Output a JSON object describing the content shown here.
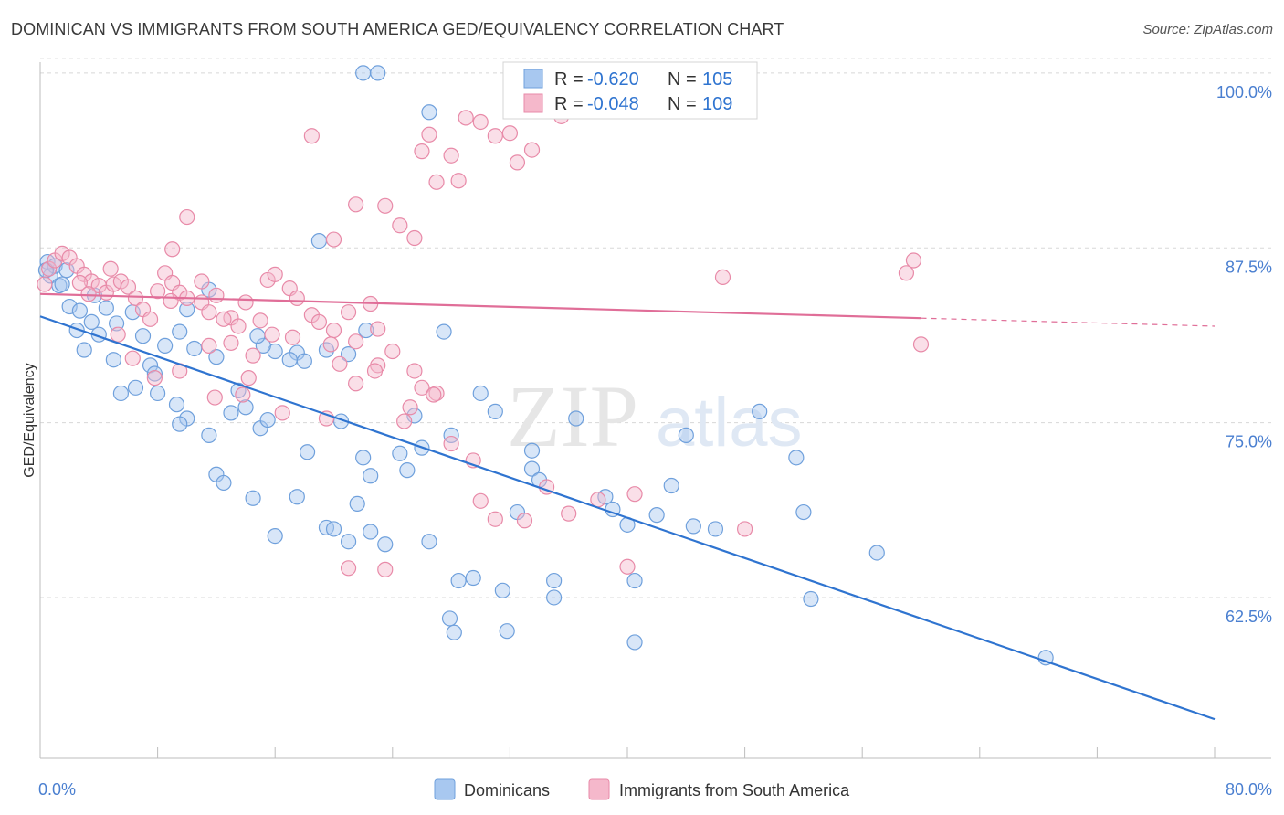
{
  "title": "DOMINICAN VS IMMIGRANTS FROM SOUTH AMERICA GED/EQUIVALENCY CORRELATION CHART",
  "source": "Source: ZipAtlas.com",
  "watermark": {
    "zip": "ZIP",
    "atlas": "atlas"
  },
  "colors": {
    "blue_fill": "#a8c8f0",
    "blue_stroke": "#6fa0dc",
    "blue_line": "#2f74d0",
    "pink_fill": "#f5b8cb",
    "pink_stroke": "#e88aa8",
    "pink_line": "#e06e98",
    "grid": "#d8d8d8",
    "tick_text": "#4a7fd0"
  },
  "legend": {
    "r_label": "R =",
    "n_label": "N =",
    "entries": [
      {
        "r": "-0.620",
        "n": "105",
        "series": "blue"
      },
      {
        "r": "-0.048",
        "n": "109",
        "series": "pink"
      }
    ]
  },
  "chart_data": {
    "type": "scatter",
    "title": "DOMINICAN VS IMMIGRANTS FROM SOUTH AMERICA GED/EQUIVALENCY CORRELATION CHART",
    "xlabel": "",
    "ylabel": "GED/Equivalency",
    "xlim": [
      0,
      80
    ],
    "ylim": [
      51,
      101.3
    ],
    "x_tick_labels": [
      "0.0%",
      "80.0%"
    ],
    "y_ticks": [
      62.5,
      75.0,
      87.5,
      100.0
    ],
    "y_tick_labels": [
      "62.5%",
      "75.0%",
      "87.5%",
      "100.0%"
    ],
    "grid": true,
    "legend_position": "top-center",
    "series": [
      {
        "name": "Dominicans",
        "color": "blue",
        "trend": {
          "x0": 0,
          "y0": 82.6,
          "x1": 80,
          "y1": 53.8,
          "solid_until": 80
        },
        "points": [
          [
            0.5,
            86.5
          ],
          [
            0.7,
            85.5
          ],
          [
            1.0,
            86.2
          ],
          [
            1.3,
            84.8
          ],
          [
            0.4,
            85.9
          ],
          [
            1.5,
            84.9
          ],
          [
            2.0,
            83.3
          ],
          [
            2.5,
            81.6
          ],
          [
            3.0,
            80.2
          ],
          [
            2.7,
            83.0
          ],
          [
            3.5,
            82.2
          ],
          [
            4.0,
            81.3
          ],
          [
            5.2,
            82.1
          ],
          [
            6.3,
            82.9
          ],
          [
            7.5,
            79.1
          ],
          [
            5.0,
            79.5
          ],
          [
            7.0,
            81.2
          ],
          [
            7.8,
            78.5
          ],
          [
            8.5,
            80.5
          ],
          [
            9.5,
            81.5
          ],
          [
            10.5,
            80.3
          ],
          [
            11.5,
            84.5
          ],
          [
            10.0,
            83.1
          ],
          [
            12.0,
            79.7
          ],
          [
            13.5,
            77.3
          ],
          [
            14.0,
            76.1
          ],
          [
            13.0,
            75.7
          ],
          [
            15.0,
            74.6
          ],
          [
            15.5,
            75.2
          ],
          [
            16.0,
            80.1
          ],
          [
            15.2,
            80.5
          ],
          [
            17.5,
            80.0
          ],
          [
            18.0,
            79.4
          ],
          [
            5.5,
            77.1
          ],
          [
            6.5,
            77.5
          ],
          [
            8.0,
            77.1
          ],
          [
            10.0,
            75.3
          ],
          [
            11.5,
            74.1
          ],
          [
            12.0,
            71.3
          ],
          [
            12.5,
            70.7
          ],
          [
            14.5,
            69.6
          ],
          [
            16.0,
            66.9
          ],
          [
            17.5,
            69.7
          ],
          [
            19.5,
            67.5
          ],
          [
            20.0,
            67.4
          ],
          [
            21.0,
            66.5
          ],
          [
            22.5,
            67.2
          ],
          [
            23.5,
            66.3
          ],
          [
            20.5,
            75.1
          ],
          [
            22.0,
            72.5
          ],
          [
            22.5,
            71.2
          ],
          [
            25.0,
            71.6
          ],
          [
            25.5,
            75.5
          ],
          [
            26.0,
            73.2
          ],
          [
            26.5,
            66.5
          ],
          [
            27.5,
            81.5
          ],
          [
            28.0,
            74.1
          ],
          [
            28.5,
            63.7
          ],
          [
            29.5,
            63.9
          ],
          [
            30.0,
            77.1
          ],
          [
            31.0,
            75.8
          ],
          [
            31.5,
            63.0
          ],
          [
            32.5,
            68.6
          ],
          [
            33.5,
            73.0
          ],
          [
            33.5,
            71.7
          ],
          [
            34.0,
            70.9
          ],
          [
            35.0,
            63.7
          ],
          [
            35.0,
            62.5
          ],
          [
            36.5,
            75.3
          ],
          [
            38.5,
            69.7
          ],
          [
            39.0,
            68.8
          ],
          [
            40.0,
            67.7
          ],
          [
            40.5,
            63.7
          ],
          [
            40.5,
            59.3
          ],
          [
            42.0,
            68.4
          ],
          [
            43.0,
            70.5
          ],
          [
            44.0,
            74.1
          ],
          [
            44.5,
            67.6
          ],
          [
            46.0,
            67.4
          ],
          [
            49.0,
            75.8
          ],
          [
            51.5,
            72.5
          ],
          [
            52.0,
            68.6
          ],
          [
            52.5,
            62.4
          ],
          [
            57.0,
            65.7
          ],
          [
            68.5,
            58.2
          ],
          [
            9.5,
            74.9
          ],
          [
            14.8,
            81.2
          ],
          [
            19.5,
            80.2
          ],
          [
            17.0,
            79.5
          ],
          [
            21.0,
            79.9
          ],
          [
            22.2,
            81.6
          ],
          [
            24.5,
            72.8
          ],
          [
            28.2,
            60.0
          ],
          [
            31.8,
            60.1
          ],
          [
            9.3,
            76.3
          ],
          [
            21.6,
            69.2
          ],
          [
            18.2,
            72.9
          ],
          [
            22.0,
            100.0
          ],
          [
            23.0,
            100.0
          ],
          [
            26.5,
            97.2
          ],
          [
            19.0,
            88.0
          ],
          [
            3.7,
            84.1
          ],
          [
            4.5,
            83.2
          ],
          [
            1.8,
            85.9
          ],
          [
            27.9,
            61.0
          ]
        ]
      },
      {
        "name": "Immigrants from South America",
        "color": "pink",
        "trend": {
          "x0": 0,
          "y0": 84.2,
          "x1": 80,
          "y1": 81.9,
          "solid_until": 60
        },
        "points": [
          [
            0.3,
            84.9
          ],
          [
            0.6,
            86.0
          ],
          [
            1.0,
            86.6
          ],
          [
            1.5,
            87.1
          ],
          [
            2.0,
            86.8
          ],
          [
            2.5,
            86.2
          ],
          [
            3.0,
            85.6
          ],
          [
            3.5,
            85.1
          ],
          [
            4.0,
            84.8
          ],
          [
            4.5,
            84.3
          ],
          [
            5.0,
            84.9
          ],
          [
            5.5,
            85.1
          ],
          [
            6.0,
            84.7
          ],
          [
            6.5,
            83.9
          ],
          [
            7.0,
            83.1
          ],
          [
            7.5,
            82.4
          ],
          [
            8.0,
            84.4
          ],
          [
            8.5,
            85.7
          ],
          [
            9.0,
            85.0
          ],
          [
            9.5,
            84.3
          ],
          [
            10.0,
            83.9
          ],
          [
            11.0,
            83.6
          ],
          [
            11.5,
            82.9
          ],
          [
            12.0,
            84.1
          ],
          [
            13.0,
            82.5
          ],
          [
            13.5,
            81.9
          ],
          [
            14.0,
            83.6
          ],
          [
            15.0,
            82.3
          ],
          [
            15.5,
            85.2
          ],
          [
            16.0,
            85.6
          ],
          [
            17.0,
            84.6
          ],
          [
            17.5,
            83.9
          ],
          [
            18.5,
            82.7
          ],
          [
            19.0,
            82.2
          ],
          [
            20.0,
            81.6
          ],
          [
            21.0,
            82.9
          ],
          [
            21.5,
            80.8
          ],
          [
            22.5,
            83.5
          ],
          [
            23.0,
            81.7
          ],
          [
            24.0,
            80.1
          ],
          [
            25.5,
            78.7
          ],
          [
            26.0,
            77.5
          ],
          [
            27.0,
            77.1
          ],
          [
            28.0,
            73.5
          ],
          [
            29.5,
            72.3
          ],
          [
            30.0,
            69.4
          ],
          [
            31.0,
            68.1
          ],
          [
            33.0,
            68.0
          ],
          [
            34.5,
            70.4
          ],
          [
            36.0,
            68.5
          ],
          [
            38.0,
            69.5
          ],
          [
            40.0,
            64.7
          ],
          [
            18.5,
            95.5
          ],
          [
            20.0,
            88.1
          ],
          [
            21.5,
            90.6
          ],
          [
            23.5,
            90.5
          ],
          [
            24.5,
            89.1
          ],
          [
            25.5,
            88.2
          ],
          [
            26.0,
            94.4
          ],
          [
            26.5,
            95.6
          ],
          [
            27.0,
            92.2
          ],
          [
            28.0,
            94.1
          ],
          [
            28.5,
            92.3
          ],
          [
            29.0,
            96.8
          ],
          [
            30.0,
            96.5
          ],
          [
            31.0,
            95.5
          ],
          [
            32.0,
            95.7
          ],
          [
            32.5,
            93.6
          ],
          [
            33.5,
            94.5
          ],
          [
            35.5,
            96.9
          ],
          [
            10.0,
            89.7
          ],
          [
            12.5,
            82.4
          ],
          [
            9.0,
            87.4
          ],
          [
            11.0,
            85.1
          ],
          [
            14.5,
            79.8
          ],
          [
            16.5,
            75.7
          ],
          [
            19.5,
            75.3
          ],
          [
            21.5,
            77.8
          ],
          [
            23.0,
            79.1
          ],
          [
            11.5,
            80.5
          ],
          [
            13.0,
            80.7
          ],
          [
            9.5,
            78.7
          ],
          [
            21.0,
            64.6
          ],
          [
            23.5,
            64.5
          ],
          [
            40.5,
            69.9
          ],
          [
            48.0,
            67.4
          ],
          [
            59.5,
            86.6
          ],
          [
            59.0,
            85.7
          ],
          [
            60.0,
            80.6
          ],
          [
            46.5,
            85.4
          ],
          [
            36.0,
            100.0
          ],
          [
            15.8,
            81.3
          ],
          [
            17.2,
            81.1
          ],
          [
            19.8,
            80.6
          ],
          [
            22.8,
            78.7
          ],
          [
            24.8,
            75.1
          ],
          [
            26.8,
            77.0
          ],
          [
            7.8,
            78.2
          ],
          [
            6.3,
            79.6
          ],
          [
            5.3,
            81.3
          ],
          [
            2.7,
            85.0
          ],
          [
            4.8,
            86.0
          ],
          [
            3.3,
            84.2
          ],
          [
            13.8,
            77.0
          ],
          [
            14.2,
            78.2
          ],
          [
            20.4,
            79.2
          ],
          [
            25.2,
            76.1
          ],
          [
            11.9,
            76.8
          ],
          [
            8.9,
            83.7
          ]
        ]
      }
    ]
  },
  "bottom_legend": [
    {
      "label": "Dominicans",
      "series": "blue"
    },
    {
      "label": "Immigrants from South America",
      "series": "pink"
    }
  ]
}
